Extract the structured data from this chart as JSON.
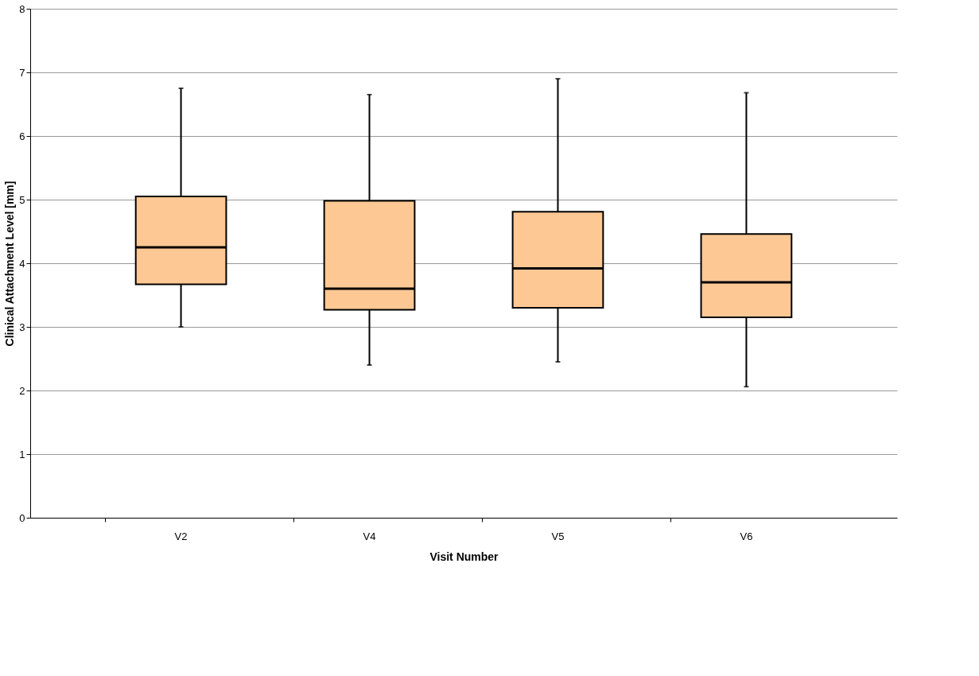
{
  "chart_data": {
    "type": "box",
    "xlabel": "Visit Number",
    "ylabel": "Clinical Attachment Level [mm]",
    "categories": [
      "V2",
      "V4",
      "V5",
      "V6"
    ],
    "color": "#fdc894",
    "boxes": [
      {
        "low": 3.0,
        "q1": 3.67,
        "median": 4.25,
        "q3": 5.05,
        "high": 6.75
      },
      {
        "low": 2.4,
        "q1": 3.27,
        "median": 3.6,
        "q3": 4.98,
        "high": 6.65
      },
      {
        "low": 2.45,
        "q1": 3.3,
        "median": 3.92,
        "q3": 4.81,
        "high": 6.9
      },
      {
        "low": 2.06,
        "q1": 3.15,
        "median": 3.7,
        "q3": 4.46,
        "high": 6.68
      }
    ],
    "ylim": [
      0,
      8
    ],
    "yticks": [
      0,
      1,
      2,
      3,
      4,
      5,
      6,
      7,
      8
    ],
    "grid": "y"
  }
}
